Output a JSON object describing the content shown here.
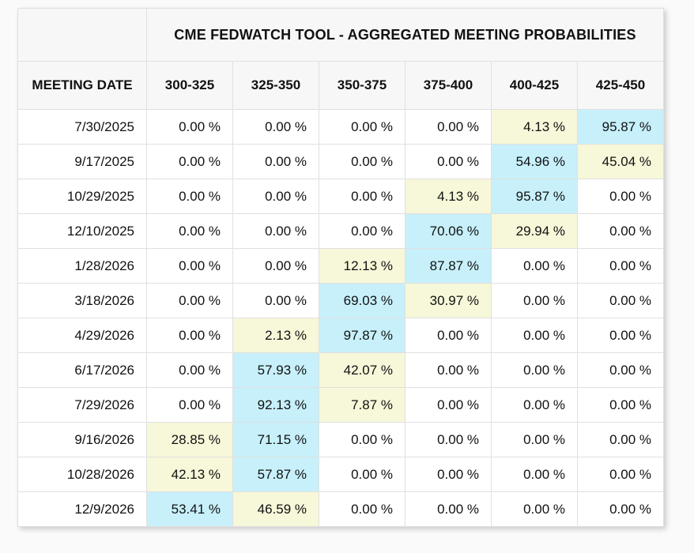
{
  "page": {
    "background_color": "#fafafa"
  },
  "table": {
    "title": "CME FEDWATCH TOOL - AGGREGATED MEETING PROBABILITIES",
    "row_header": "MEETING DATE",
    "rate_columns": [
      "300-325",
      "325-350",
      "350-375",
      "375-400",
      "400-425",
      "425-450"
    ],
    "highlight_colors": {
      "none": "#ffffff",
      "yellow": "#f7f7d9",
      "blue": "#c7f0fa"
    },
    "header_bg": "#f7f7f7",
    "border_color": "#e0e0e0",
    "rows": [
      {
        "date": "7/30/2025",
        "values": [
          "0.00 %",
          "0.00 %",
          "0.00 %",
          "0.00 %",
          "4.13 %",
          "95.87 %"
        ],
        "highlights": [
          "none",
          "none",
          "none",
          "none",
          "yellow",
          "blue"
        ]
      },
      {
        "date": "9/17/2025",
        "values": [
          "0.00 %",
          "0.00 %",
          "0.00 %",
          "0.00 %",
          "54.96 %",
          "45.04 %"
        ],
        "highlights": [
          "none",
          "none",
          "none",
          "none",
          "blue",
          "yellow"
        ]
      },
      {
        "date": "10/29/2025",
        "values": [
          "0.00 %",
          "0.00 %",
          "0.00 %",
          "4.13 %",
          "95.87 %",
          "0.00 %"
        ],
        "highlights": [
          "none",
          "none",
          "none",
          "yellow",
          "blue",
          "none"
        ]
      },
      {
        "date": "12/10/2025",
        "values": [
          "0.00 %",
          "0.00 %",
          "0.00 %",
          "70.06 %",
          "29.94 %",
          "0.00 %"
        ],
        "highlights": [
          "none",
          "none",
          "none",
          "blue",
          "yellow",
          "none"
        ]
      },
      {
        "date": "1/28/2026",
        "values": [
          "0.00 %",
          "0.00 %",
          "12.13 %",
          "87.87 %",
          "0.00 %",
          "0.00 %"
        ],
        "highlights": [
          "none",
          "none",
          "yellow",
          "blue",
          "none",
          "none"
        ]
      },
      {
        "date": "3/18/2026",
        "values": [
          "0.00 %",
          "0.00 %",
          "69.03 %",
          "30.97 %",
          "0.00 %",
          "0.00 %"
        ],
        "highlights": [
          "none",
          "none",
          "blue",
          "yellow",
          "none",
          "none"
        ]
      },
      {
        "date": "4/29/2026",
        "values": [
          "0.00 %",
          "2.13 %",
          "97.87 %",
          "0.00 %",
          "0.00 %",
          "0.00 %"
        ],
        "highlights": [
          "none",
          "yellow",
          "blue",
          "none",
          "none",
          "none"
        ]
      },
      {
        "date": "6/17/2026",
        "values": [
          "0.00 %",
          "57.93 %",
          "42.07 %",
          "0.00 %",
          "0.00 %",
          "0.00 %"
        ],
        "highlights": [
          "none",
          "blue",
          "yellow",
          "none",
          "none",
          "none"
        ]
      },
      {
        "date": "7/29/2026",
        "values": [
          "0.00 %",
          "92.13 %",
          "7.87 %",
          "0.00 %",
          "0.00 %",
          "0.00 %"
        ],
        "highlights": [
          "none",
          "blue",
          "yellow",
          "none",
          "none",
          "none"
        ]
      },
      {
        "date": "9/16/2026",
        "values": [
          "28.85 %",
          "71.15 %",
          "0.00 %",
          "0.00 %",
          "0.00 %",
          "0.00 %"
        ],
        "highlights": [
          "yellow",
          "blue",
          "none",
          "none",
          "none",
          "none"
        ]
      },
      {
        "date": "10/28/2026",
        "values": [
          "42.13 %",
          "57.87 %",
          "0.00 %",
          "0.00 %",
          "0.00 %",
          "0.00 %"
        ],
        "highlights": [
          "yellow",
          "blue",
          "none",
          "none",
          "none",
          "none"
        ]
      },
      {
        "date": "12/9/2026",
        "values": [
          "53.41 %",
          "46.59 %",
          "0.00 %",
          "0.00 %",
          "0.00 %",
          "0.00 %"
        ],
        "highlights": [
          "blue",
          "yellow",
          "none",
          "none",
          "none",
          "none"
        ]
      }
    ]
  },
  "chart_data": {
    "type": "table",
    "title": "CME FEDWATCH TOOL - AGGREGATED MEETING PROBABILITIES",
    "row_header": "MEETING DATE",
    "columns": [
      "300-325",
      "325-350",
      "350-375",
      "375-400",
      "400-425",
      "425-450"
    ],
    "rows": [
      "7/30/2025",
      "9/17/2025",
      "10/29/2025",
      "12/10/2025",
      "1/28/2026",
      "3/18/2026",
      "4/29/2026",
      "6/17/2026",
      "7/29/2026",
      "9/16/2026",
      "10/28/2026",
      "12/9/2026"
    ],
    "values": [
      [
        0.0,
        0.0,
        0.0,
        0.0,
        4.13,
        95.87
      ],
      [
        0.0,
        0.0,
        0.0,
        0.0,
        54.96,
        45.04
      ],
      [
        0.0,
        0.0,
        0.0,
        4.13,
        95.87,
        0.0
      ],
      [
        0.0,
        0.0,
        0.0,
        70.06,
        29.94,
        0.0
      ],
      [
        0.0,
        0.0,
        12.13,
        87.87,
        0.0,
        0.0
      ],
      [
        0.0,
        0.0,
        69.03,
        30.97,
        0.0,
        0.0
      ],
      [
        0.0,
        2.13,
        97.87,
        0.0,
        0.0,
        0.0
      ],
      [
        0.0,
        57.93,
        42.07,
        0.0,
        0.0,
        0.0
      ],
      [
        0.0,
        92.13,
        7.87,
        0.0,
        0.0,
        0.0
      ],
      [
        28.85,
        71.15,
        0.0,
        0.0,
        0.0,
        0.0
      ],
      [
        42.13,
        57.87,
        0.0,
        0.0,
        0.0,
        0.0
      ],
      [
        53.41,
        46.59,
        0.0,
        0.0,
        0.0,
        0.0
      ]
    ],
    "unit": "%",
    "highlight_legend": {
      "blue": "highest probability in row (#c7f0fa)",
      "yellow": "second highest probability in row (#f7f7d9)"
    }
  }
}
